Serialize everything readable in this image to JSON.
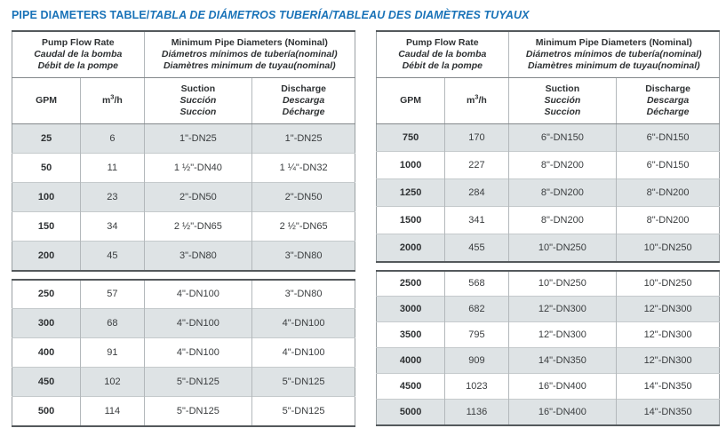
{
  "title": {
    "main": "PIPE DIAMETERS TABLE/",
    "italic": "TABLA DE DIÁMETROS TUBERÍA/TABLEAU DES DIAMÈTRES TUYAUX"
  },
  "colors": {
    "title_blue": "#1a73b8",
    "row_gray": "#dee3e5",
    "frame_dark": "#54595c",
    "text_dark": "#3a3d3f"
  },
  "header": {
    "flow": {
      "line1": "Pump Flow Rate",
      "line2": "Caudal de la bomba",
      "line3": "Débit de la pompe"
    },
    "diameters": {
      "line1": "Minimum Pipe Diameters (Nominal)",
      "line2": "Diámetros mínimos de tubería(nominal)",
      "line3": "Diamètres minimum de tuyau(nominal)"
    },
    "gpm": "GPM",
    "m3h": {
      "base": "m",
      "sup": "3",
      "unit": "/h"
    },
    "suction": {
      "line1": "Suction",
      "line2": "Succión",
      "line3": "Succion"
    },
    "discharge": {
      "line1": "Discharge",
      "line2": "Descarga",
      "line3": "Décharge"
    }
  },
  "tables": {
    "left": {
      "group1": [
        {
          "gpm": "25",
          "m3h": "6",
          "suction": "1\"-DN25",
          "discharge": "1\"-DN25"
        },
        {
          "gpm": "50",
          "m3h": "11",
          "suction": "1 ½\"-DN40",
          "discharge": "1 ¼\"-DN32"
        },
        {
          "gpm": "100",
          "m3h": "23",
          "suction": "2\"-DN50",
          "discharge": "2\"-DN50"
        },
        {
          "gpm": "150",
          "m3h": "34",
          "suction": "2 ½\"-DN65",
          "discharge": "2 ½\"-DN65"
        },
        {
          "gpm": "200",
          "m3h": "45",
          "suction": "3\"-DN80",
          "discharge": "3\"-DN80"
        }
      ],
      "group2": [
        {
          "gpm": "250",
          "m3h": "57",
          "suction": "4\"-DN100",
          "discharge": "3\"-DN80"
        },
        {
          "gpm": "300",
          "m3h": "68",
          "suction": "4\"-DN100",
          "discharge": "4\"-DN100"
        },
        {
          "gpm": "400",
          "m3h": "91",
          "suction": "4\"-DN100",
          "discharge": "4\"-DN100"
        },
        {
          "gpm": "450",
          "m3h": "102",
          "suction": "5\"-DN125",
          "discharge": "5\"-DN125"
        },
        {
          "gpm": "500",
          "m3h": "114",
          "suction": "5\"-DN125",
          "discharge": "5\"-DN125"
        }
      ]
    },
    "right": {
      "group1": [
        {
          "gpm": "750",
          "m3h": "170",
          "suction": "6\"-DN150",
          "discharge": "6\"-DN150"
        },
        {
          "gpm": "1000",
          "m3h": "227",
          "suction": "8\"-DN200",
          "discharge": "6\"-DN150"
        },
        {
          "gpm": "1250",
          "m3h": "284",
          "suction": "8\"-DN200",
          "discharge": "8\"-DN200"
        },
        {
          "gpm": "1500",
          "m3h": "341",
          "suction": "8\"-DN200",
          "discharge": "8\"-DN200"
        },
        {
          "gpm": "2000",
          "m3h": "455",
          "suction": "10\"-DN250",
          "discharge": "10\"-DN250"
        }
      ],
      "group2": [
        {
          "gpm": "2500",
          "m3h": "568",
          "suction": "10\"-DN250",
          "discharge": "10\"-DN250"
        },
        {
          "gpm": "3000",
          "m3h": "682",
          "suction": "12\"-DN300",
          "discharge": "12\"-DN300"
        },
        {
          "gpm": "3500",
          "m3h": "795",
          "suction": "12\"-DN300",
          "discharge": "12\"-DN300"
        },
        {
          "gpm": "4000",
          "m3h": "909",
          "suction": "14\"-DN350",
          "discharge": "12\"-DN300"
        },
        {
          "gpm": "4500",
          "m3h": "1023",
          "suction": "16\"-DN400",
          "discharge": "14\"-DN350"
        },
        {
          "gpm": "5000",
          "m3h": "1136",
          "suction": "16\"-DN400",
          "discharge": "14\"-DN350"
        }
      ]
    }
  }
}
